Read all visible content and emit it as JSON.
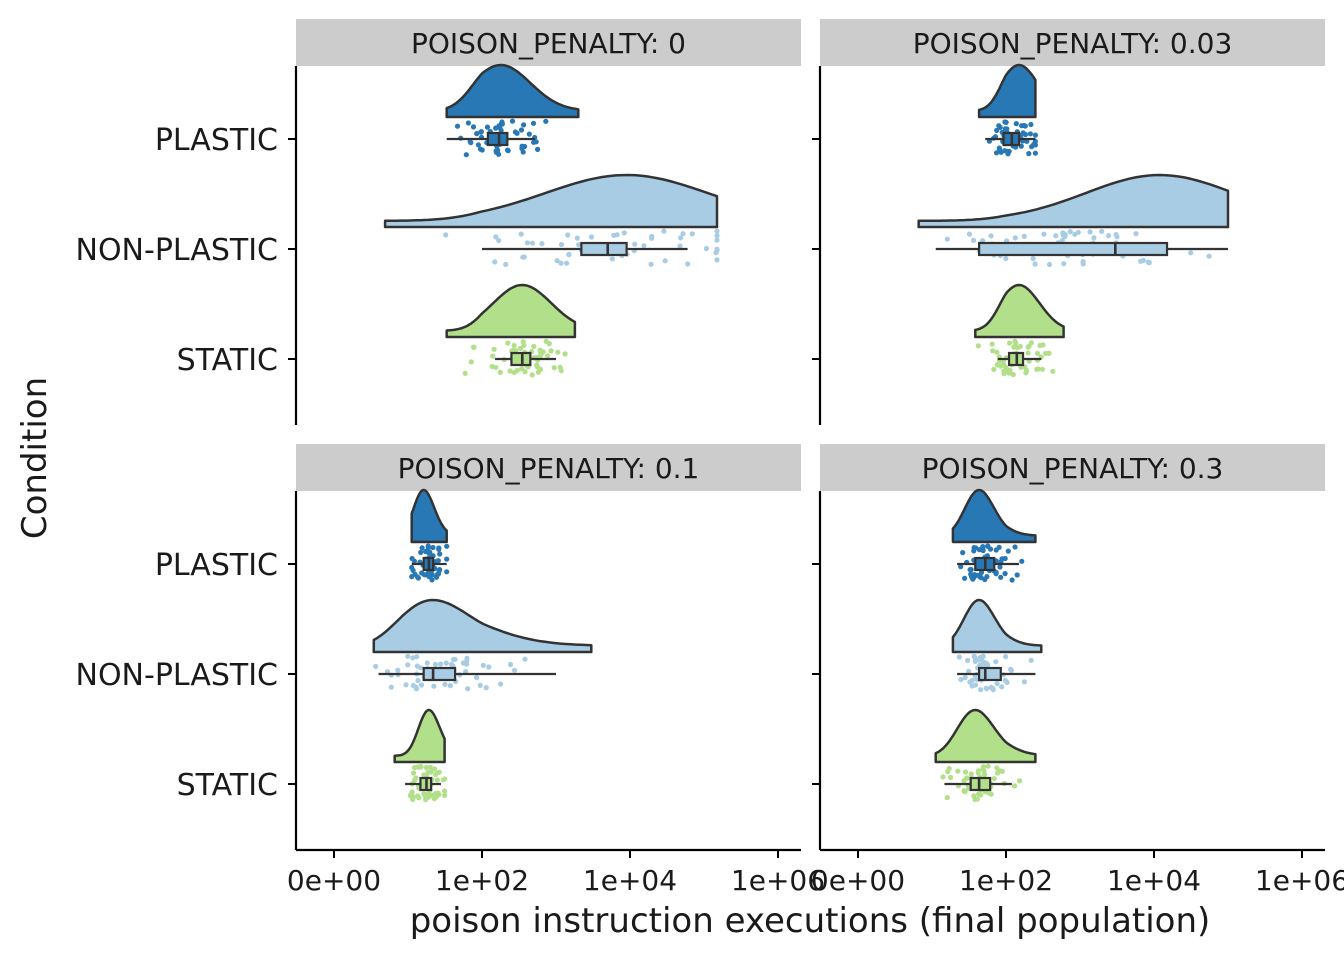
{
  "chart_data": {
    "type": "raincloud",
    "xlabel": "poison instruction executions (final population)",
    "ylabel": "Condition",
    "x_scale": "log-like",
    "x_ticks": [
      "0e+00",
      "1e+02",
      "1e+04",
      "1e+06"
    ],
    "categories": [
      "PLASTIC",
      "NON-PLASTIC",
      "STATIC"
    ],
    "colors": {
      "PLASTIC": "#2878b5",
      "NON-PLASTIC": "#a8cce4",
      "STATIC": "#b2df8a",
      "strip_bg": "#cccccc",
      "outline": "#333333"
    },
    "grid": false,
    "legend": "none",
    "facet_label_prefix": "POISON_PENALTY: ",
    "panels": [
      {
        "penalty": "0",
        "title": "POISON_PENALTY: 0",
        "series": [
          {
            "name": "PLASTIC",
            "min": 20,
            "q1": 120,
            "median": 170,
            "q3": 220,
            "max": 520,
            "mode": 180,
            "range": [
              20,
              2000
            ]
          },
          {
            "name": "NON-PLASTIC",
            "min": 100,
            "q1": 2200,
            "median": 5000,
            "q3": 9000,
            "max": 60000,
            "mode": 9000,
            "range": [
              0.5,
              150000
            ]
          },
          {
            "name": "STATIC",
            "min": 150,
            "q1": 250,
            "median": 350,
            "q3": 450,
            "max": 1000,
            "mode": 350,
            "range": [
              20,
              1800
            ]
          }
        ]
      },
      {
        "penalty": "0.03",
        "title": "POISON_PENALTY: 0.03",
        "series": [
          {
            "name": "PLASTIC",
            "min": 40,
            "q1": 90,
            "median": 120,
            "q3": 150,
            "max": 250,
            "mode": 150,
            "range": [
              30,
              250
            ]
          },
          {
            "name": "NON-PLASTIC",
            "min": 3,
            "q1": 30,
            "median": 3000,
            "q3": 15000,
            "max": 100000,
            "mode": 12000,
            "range": [
              1,
              100000
            ]
          },
          {
            "name": "STATIC",
            "min": 70,
            "q1": 110,
            "median": 140,
            "q3": 170,
            "max": 300,
            "mode": 150,
            "range": [
              25,
              600
            ]
          }
        ]
      },
      {
        "penalty": "0.1",
        "title": "POISON_PENALTY: 0.1",
        "series": [
          {
            "name": "PLASTIC",
            "min": 3,
            "q1": 6,
            "median": 8,
            "q3": 10,
            "max": 20,
            "mode": 6,
            "range": [
              3,
              20
            ]
          },
          {
            "name": "NON-PLASTIC",
            "min": 0.3,
            "q1": 6,
            "median": 10,
            "q3": 30,
            "max": 1000,
            "mode": 10,
            "range": [
              0.2,
              3000
            ]
          },
          {
            "name": "STATIC",
            "min": 2,
            "q1": 5,
            "median": 7,
            "q3": 9,
            "max": 15,
            "mode": 8,
            "range": [
              1,
              18
            ]
          }
        ]
      },
      {
        "penalty": "0.3",
        "title": "POISON_PENALTY: 0.3",
        "series": [
          {
            "name": "PLASTIC",
            "min": 10,
            "q1": 25,
            "median": 40,
            "q3": 60,
            "max": 150,
            "mode": 30,
            "range": [
              8,
              250
            ]
          },
          {
            "name": "NON-PLASTIC",
            "min": 10,
            "q1": 30,
            "median": 40,
            "q3": 80,
            "max": 250,
            "mode": 30,
            "range": [
              8,
              300
            ]
          },
          {
            "name": "STATIC",
            "min": 5,
            "q1": 20,
            "median": 30,
            "q3": 50,
            "max": 120,
            "mode": 25,
            "range": [
              3,
              250
            ]
          }
        ]
      }
    ]
  }
}
